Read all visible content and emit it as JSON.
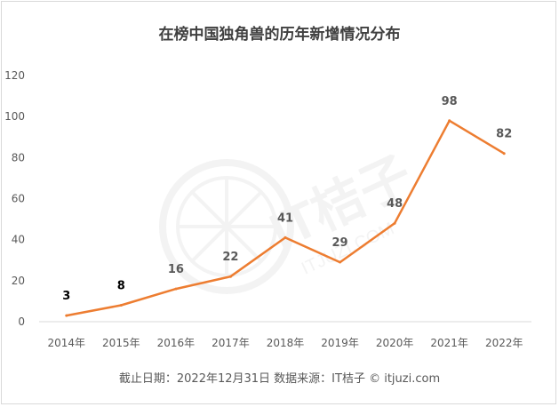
{
  "chart_data": {
    "type": "line",
    "title": "在榜中国独角兽的历年新增情况分布",
    "categories": [
      "2014年",
      "2015年",
      "2016年",
      "2017年",
      "2018年",
      "2019年",
      "2020年",
      "2021年",
      "2022年"
    ],
    "series": [
      {
        "values": [
          3,
          8,
          16,
          22,
          41,
          29,
          48,
          98,
          82
        ]
      }
    ],
    "ylim": [
      0,
      120
    ],
    "yticks": [
      0,
      20,
      40,
      60,
      80,
      100,
      120
    ],
    "grid": false,
    "legend": "none",
    "line_color": "#ED7D31",
    "footer": "截止日期：2022年12月31日    数据来源：IT桔子 © itjuzi.com",
    "watermark": "IT桔子 ITJUZI.COM"
  }
}
